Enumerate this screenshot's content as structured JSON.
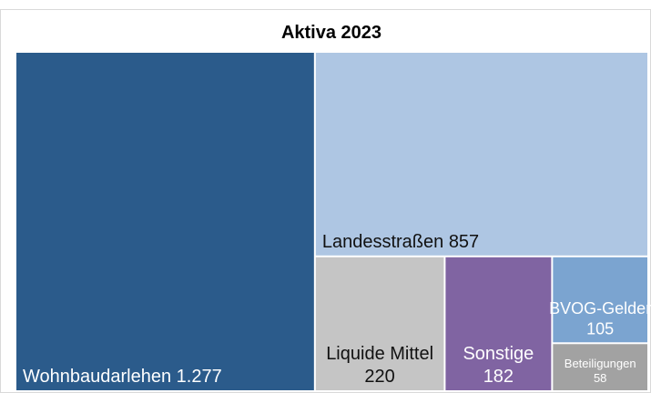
{
  "chart_data": {
    "type": "treemap",
    "title": "Aktiva 2023",
    "categories": [
      "Wohnbaudarlehen",
      "Landesstraßen",
      "Liquide Mittel",
      "Sonstige",
      "BVOG-Gelder",
      "Beteiligungen"
    ],
    "values": [
      1277,
      857,
      220,
      182,
      105,
      58
    ],
    "value_labels": [
      "1.277",
      "857",
      "220",
      "182",
      "105",
      "58"
    ],
    "colors": [
      "#2b5b8b",
      "#aec6e3",
      "#c5c5c5",
      "#8064a2",
      "#7ba4d0",
      "#a2a2a2"
    ]
  }
}
